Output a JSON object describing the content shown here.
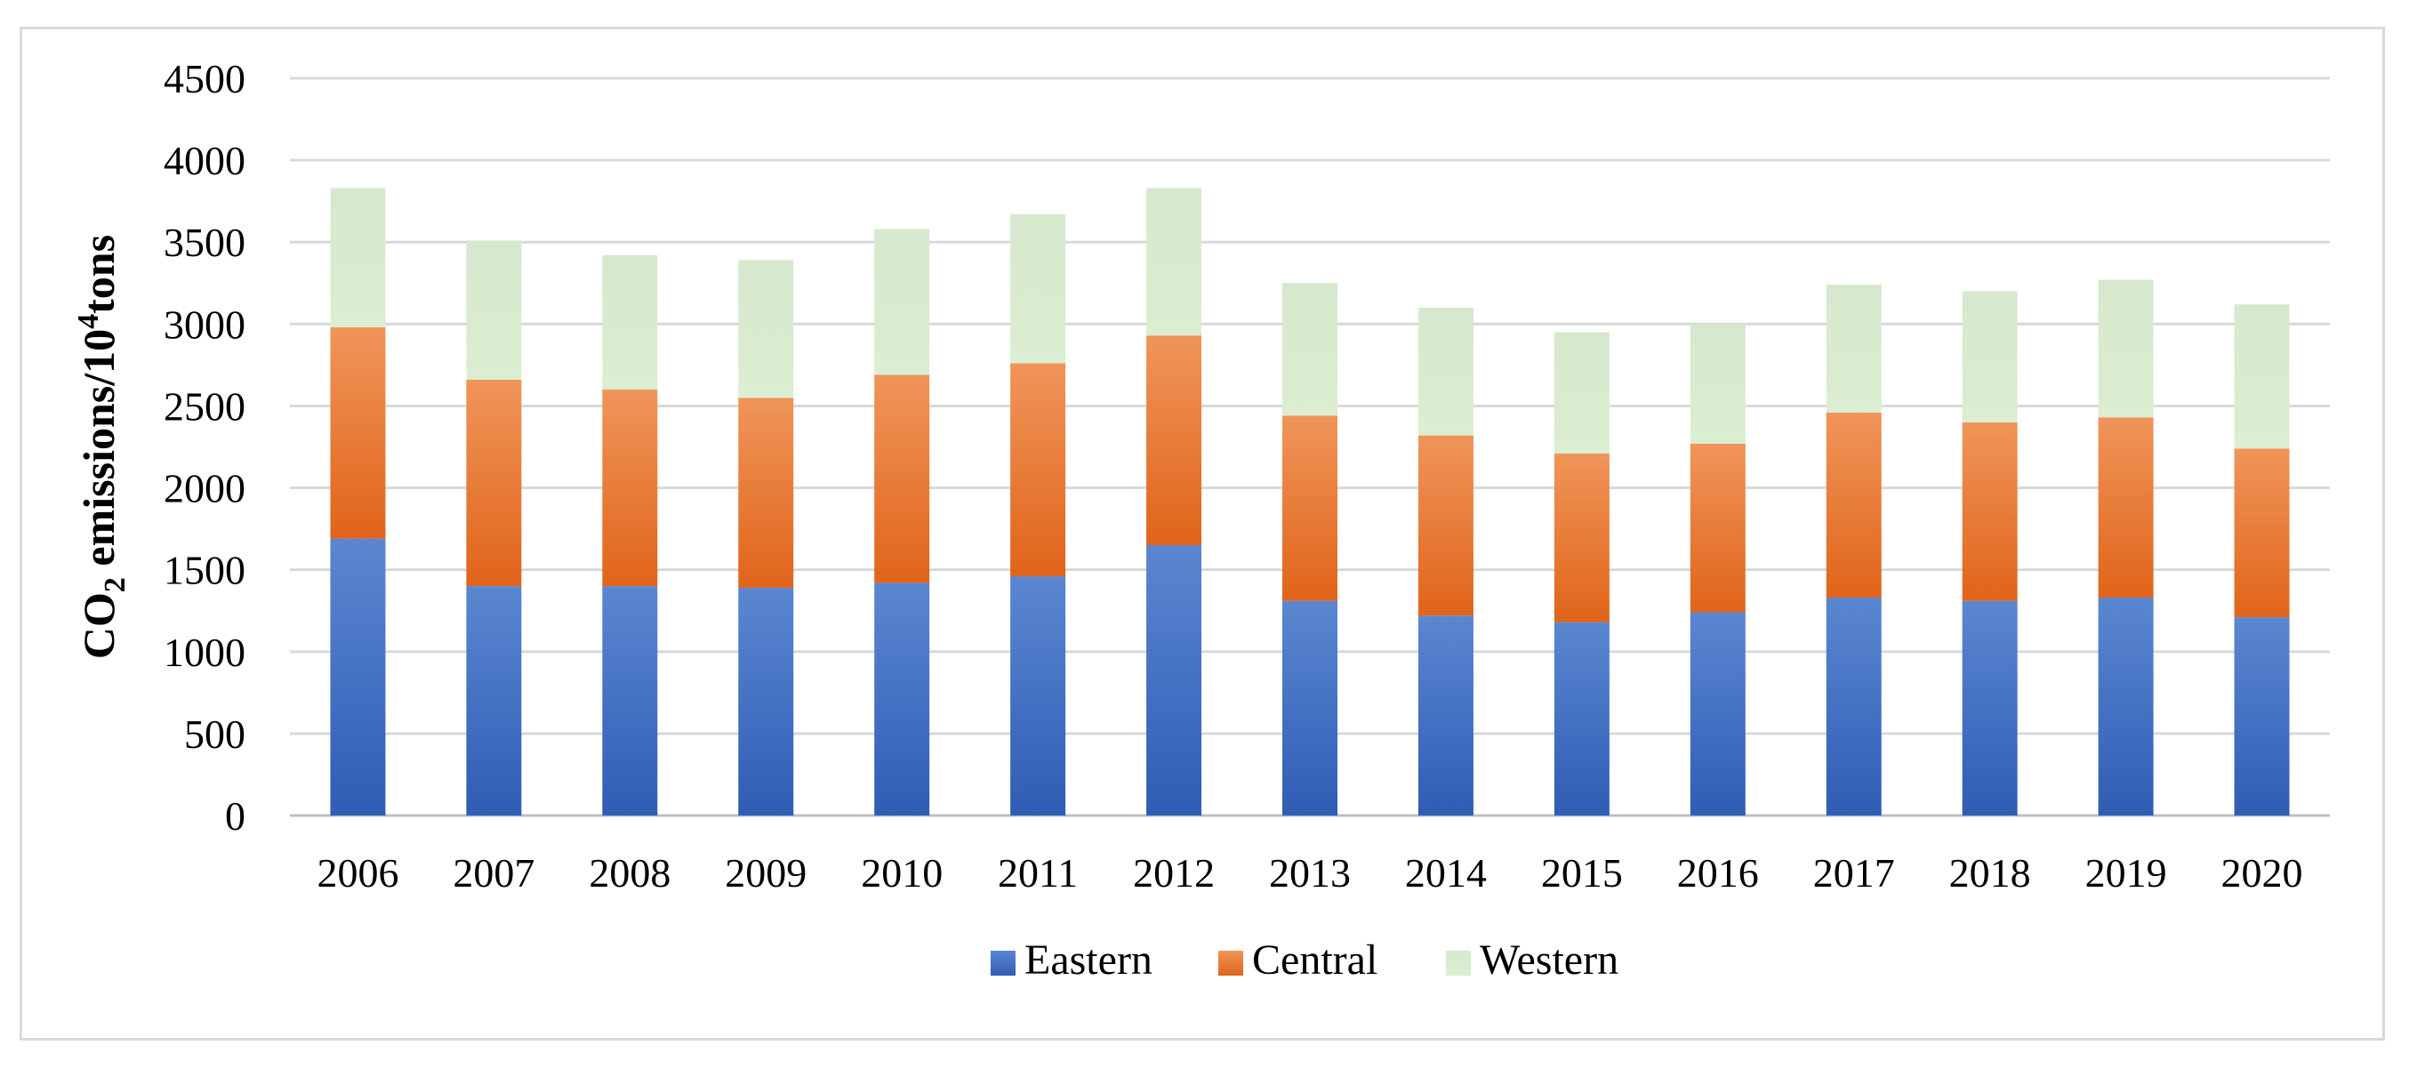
{
  "chart_data": {
    "type": "bar",
    "stacked": true,
    "title": "",
    "xlabel": "",
    "ylabel": {
      "prefix": "CO",
      "subscript": "2",
      "middle": " emissions/10",
      "superscript": "4",
      "suffix": "tons"
    },
    "ylim": [
      0,
      4500
    ],
    "yticks": [
      0,
      500,
      1000,
      1500,
      2000,
      2500,
      3000,
      3500,
      4000,
      4500
    ],
    "grid": true,
    "legend_position": "bottom",
    "categories": [
      "2006",
      "2007",
      "2008",
      "2009",
      "2010",
      "2011",
      "2012",
      "2013",
      "2014",
      "2015",
      "2016",
      "2017",
      "2018",
      "2019",
      "2020"
    ],
    "series": [
      {
        "name": "Eastern",
        "color": "#4472c4",
        "values": [
          1690,
          1400,
          1400,
          1390,
          1420,
          1460,
          1650,
          1310,
          1220,
          1180,
          1240,
          1330,
          1310,
          1330,
          1210
        ]
      },
      {
        "name": "Central",
        "color": "#ed7d31",
        "values": [
          1290,
          1260,
          1200,
          1160,
          1270,
          1300,
          1280,
          1130,
          1100,
          1030,
          1030,
          1130,
          1090,
          1100,
          1030
        ]
      },
      {
        "name": "Western",
        "color": "#d9ead3",
        "values": [
          850,
          850,
          820,
          840,
          890,
          910,
          900,
          810,
          780,
          740,
          730,
          780,
          800,
          840,
          880
        ]
      }
    ]
  }
}
